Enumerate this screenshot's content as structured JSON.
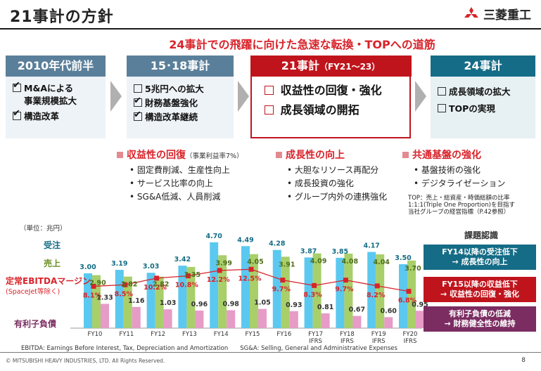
{
  "title": "21事計の方針",
  "logo": {
    "text": "三菱重工"
  },
  "headline": "24事計での飛躍に向けた急速な転換・TOPへの道筋",
  "phases": [
    {
      "label": "2010年代前半",
      "color": "#5a7f9a",
      "items": [
        {
          "text": "M&Aによる",
          "checked": true
        },
        {
          "text": "事業規模拡大",
          "checked": false,
          "indent": true
        },
        {
          "text": "構造改革",
          "checked": true
        }
      ]
    },
    {
      "label": "15･18事計",
      "color": "#5a7f9a",
      "items": [
        {
          "text": "5兆円への拡大",
          "checked": false
        },
        {
          "text": "財務基盤強化",
          "checked": true
        },
        {
          "text": "構造改革継続",
          "checked": true
        }
      ]
    },
    {
      "label": "21事計",
      "sublabel": "（FY21～23）",
      "color": "#c0141c",
      "items": [
        {
          "text": "収益性の回復・強化"
        },
        {
          "text": "成長領域の開拓"
        }
      ]
    },
    {
      "label": "24事計",
      "color": "#156c86",
      "items": [
        {
          "text": "成長領域の拡大"
        },
        {
          "text": "TOPの実現"
        }
      ]
    }
  ],
  "sections": [
    {
      "title": "収益性の回復",
      "note": "（事業利益率7%）",
      "items": [
        "固定費削減、生産性向上",
        "サービス比率の向上",
        "SG&A低減、人員削減"
      ]
    },
    {
      "title": "成長性の向上",
      "items": [
        "大胆なリソース再配分",
        "成長投資の強化",
        "グループ内外の連携強化"
      ]
    },
    {
      "title": "共通基盤の強化",
      "items": [
        "基盤技術の強化",
        "デジタライゼーション"
      ]
    }
  ],
  "note": [
    "TOP：売上・総資産・時価総額の比率",
    "1:1:1(Triple One Proportion)を目指す",
    "当社グループの経営指標（P.42参照）"
  ],
  "kadai": "課題認識",
  "callouts": [
    {
      "line1": "FY14以降の受注低下",
      "line2": "→ 成長性の向上",
      "color": "#156c86"
    },
    {
      "line1": "FY15以降の収益低下",
      "line2": "→ 収益性の回復・強化",
      "color": "#c0141c"
    },
    {
      "line1": "有利子負債の低減",
      "line2": "→ 財務健全性の維持",
      "color": "#7b2d62"
    }
  ],
  "chart_data": {
    "type": "bar",
    "unit_label": "（単位：兆円）",
    "categories": [
      "FY10",
      "FY11",
      "FY12",
      "FY13",
      "FY14",
      "FY15",
      "FY16",
      "FY17\nIFRS",
      "FY18\nIFRS",
      "FY19\nIFRS",
      "FY20\nIFRS"
    ],
    "series": [
      {
        "name": "受注",
        "color": "#5bc8f0",
        "values": [
          3.0,
          3.19,
          3.03,
          3.42,
          4.7,
          4.49,
          4.28,
          3.87,
          3.85,
          4.17,
          3.5
        ]
      },
      {
        "name": "売上",
        "color": "#a8cf6a",
        "values": [
          2.9,
          2.82,
          2.82,
          3.35,
          3.99,
          4.05,
          3.91,
          4.09,
          4.08,
          4.04,
          3.7
        ]
      },
      {
        "name": "有利子負債",
        "color": "#e79bc7",
        "values": [
          1.33,
          1.16,
          1.03,
          0.96,
          0.98,
          1.05,
          0.93,
          0.81,
          0.67,
          0.6,
          0.95
        ]
      }
    ],
    "line": {
      "name": "定常EBITDAマージン",
      "sublabel": "(SpaceJet等除く)",
      "color": "#d8232a",
      "unit": "%",
      "values": [
        8.1,
        8.5,
        10.2,
        10.8,
        12.2,
        12.5,
        9.7,
        8.3,
        9.7,
        8.2,
        6.8
      ]
    }
  },
  "footnote": "EBITDA: Earnings Before Interest, Tax, Depreciation and Amortization　　SG&A: Selling, General and Administrative Expenses",
  "copyright": "© MITSUBISHI HEAVY INDUSTRIES, LTD.  All Rights Reserved.",
  "page_number": "8"
}
